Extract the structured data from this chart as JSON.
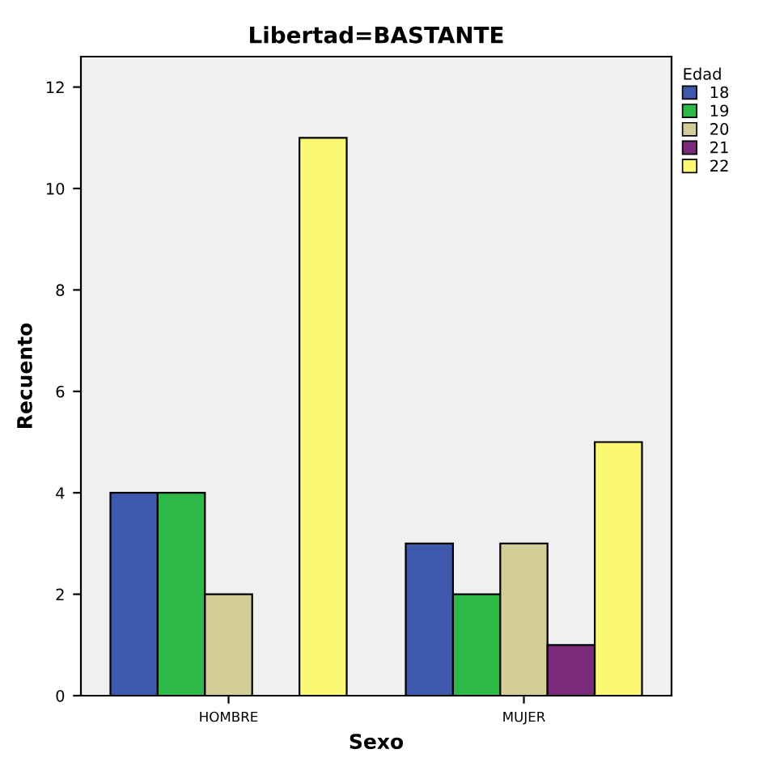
{
  "chart_data": {
    "type": "bar",
    "title": "Libertad=BASTANTE",
    "xlabel": "Sexo",
    "ylabel": "Recuento",
    "legend_title": "Edad",
    "categories": [
      "HOMBRE",
      "MUJER"
    ],
    "series": [
      {
        "name": "18",
        "color": "#3e58ac",
        "values": [
          4,
          3
        ]
      },
      {
        "name": "19",
        "color": "#2eb848",
        "values": [
          4,
          2
        ]
      },
      {
        "name": "20",
        "color": "#d3ce97",
        "values": [
          2,
          3
        ]
      },
      {
        "name": "21",
        "color": "#7b2a7b",
        "values": [
          null,
          1
        ]
      },
      {
        "name": "22",
        "color": "#fbf873",
        "values": [
          11,
          5
        ]
      }
    ],
    "ylim": [
      0,
      12.6
    ],
    "yticks": [
      0,
      2,
      4,
      6,
      8,
      10,
      12
    ],
    "grid": false,
    "legend": "top right"
  }
}
